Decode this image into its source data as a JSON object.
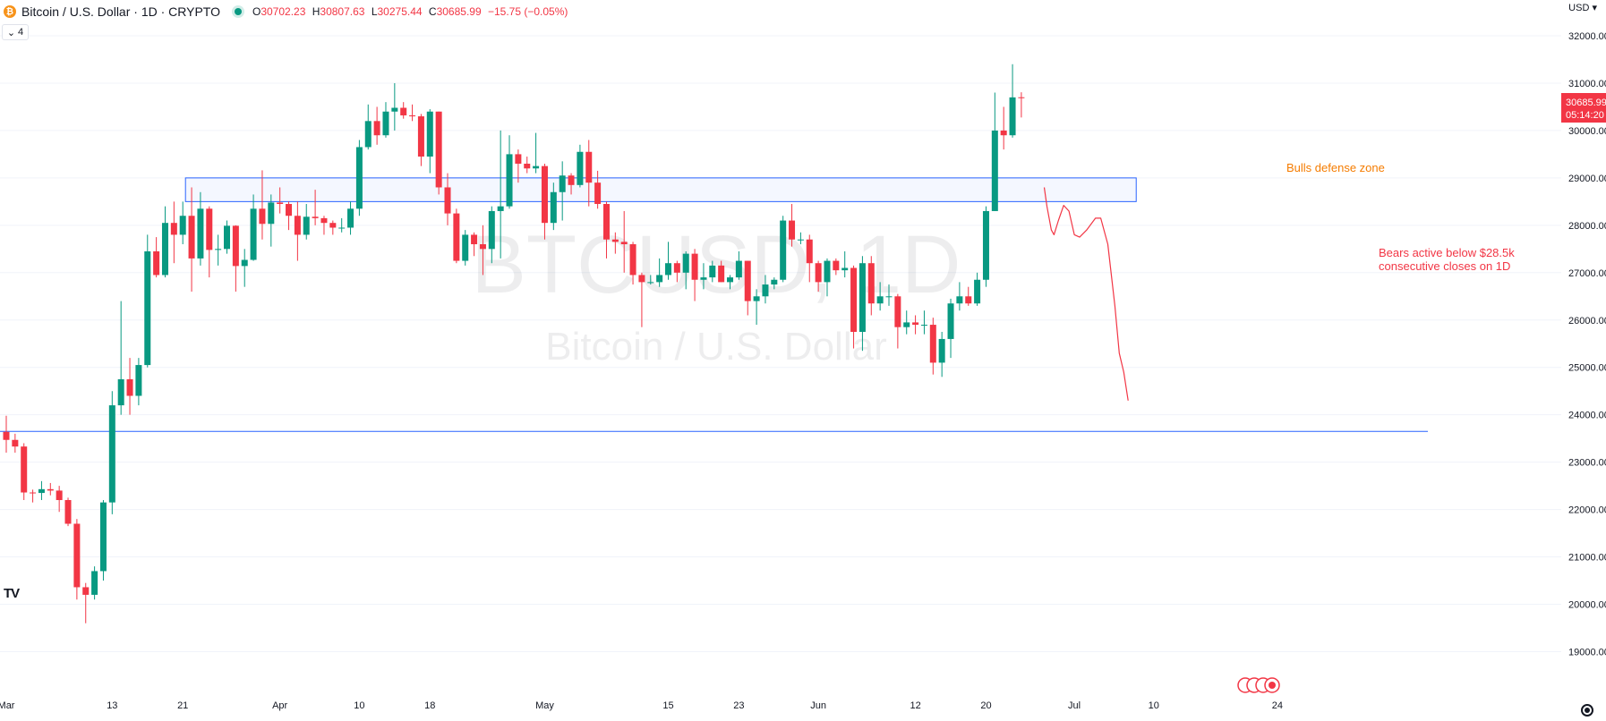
{
  "header": {
    "title": "Bitcoin / U.S. Dollar · 1D · CRYPTO",
    "icon": "bitcoin-icon",
    "ohlc": {
      "o_key": "O",
      "o": "30702.23",
      "h_key": "H",
      "h": "30807.63",
      "l_key": "L",
      "l": "30275.44",
      "c_key": "C",
      "c": "30685.99",
      "change": "−15.75 (−0.05%)"
    },
    "indicators_count": "4"
  },
  "currency": "USD",
  "colors": {
    "up": "#089981",
    "down": "#f23645",
    "zone": "#2962ff",
    "annotation": "#f57c00",
    "bear_note": "#f23645"
  },
  "watermark": {
    "symbol": "BTCUSD, 1D",
    "name": "Bitcoin / U.S. Dollar"
  },
  "price_label": {
    "price": "30685.99",
    "countdown": "05:14:20"
  },
  "chart_data": {
    "type": "candlestick",
    "title": "Bitcoin / U.S. Dollar · 1D · CRYPTO",
    "xlabel": "",
    "ylabel": "",
    "ylim": [
      18660,
      32660
    ],
    "y_ticks": [
      19000,
      20000,
      21000,
      22000,
      23000,
      24000,
      25000,
      26000,
      27000,
      28000,
      29000,
      30000,
      31000,
      32000
    ],
    "x_ticks": [
      {
        "label": "Mar",
        "index": 0
      },
      {
        "label": "13",
        "index": 12
      },
      {
        "label": "21",
        "index": 20
      },
      {
        "label": "Apr",
        "index": 31
      },
      {
        "label": "10",
        "index": 40
      },
      {
        "label": "18",
        "index": 48
      },
      {
        "label": "May",
        "index": 61
      },
      {
        "label": "15",
        "index": 75
      },
      {
        "label": "23",
        "index": 83
      },
      {
        "label": "Jun",
        "index": 92
      },
      {
        "label": "12",
        "index": 103
      },
      {
        "label": "20",
        "index": 111
      },
      {
        "label": "Jul",
        "index": 121
      },
      {
        "label": "10",
        "index": 130
      },
      {
        "label": "24",
        "index": 144
      }
    ],
    "first_date": "2023-03-01",
    "candles": [
      {
        "d": "03-01",
        "o": 23640,
        "h": 23980,
        "l": 23200,
        "c": 23470
      },
      {
        "d": "03-02",
        "o": 23470,
        "h": 23600,
        "l": 23200,
        "c": 23330
      },
      {
        "d": "03-03",
        "o": 23330,
        "h": 23400,
        "l": 22200,
        "c": 22360
      },
      {
        "d": "03-04",
        "o": 22360,
        "h": 22420,
        "l": 22150,
        "c": 22350
      },
      {
        "d": "03-05",
        "o": 22350,
        "h": 22600,
        "l": 22200,
        "c": 22430
      },
      {
        "d": "03-06",
        "o": 22430,
        "h": 22560,
        "l": 22300,
        "c": 22400
      },
      {
        "d": "03-07",
        "o": 22400,
        "h": 22500,
        "l": 21950,
        "c": 22200
      },
      {
        "d": "03-08",
        "o": 22200,
        "h": 22250,
        "l": 21650,
        "c": 21700
      },
      {
        "d": "03-09",
        "o": 21700,
        "h": 21800,
        "l": 20100,
        "c": 20360
      },
      {
        "d": "03-10",
        "o": 20360,
        "h": 20450,
        "l": 19600,
        "c": 20200
      },
      {
        "d": "03-11",
        "o": 20200,
        "h": 20800,
        "l": 20100,
        "c": 20700
      },
      {
        "d": "03-12",
        "o": 20700,
        "h": 22200,
        "l": 20500,
        "c": 22150
      },
      {
        "d": "03-13",
        "o": 22150,
        "h": 24500,
        "l": 21900,
        "c": 24200
      },
      {
        "d": "03-14",
        "o": 24200,
        "h": 26400,
        "l": 24000,
        "c": 24750
      },
      {
        "d": "03-15",
        "o": 24750,
        "h": 25200,
        "l": 24000,
        "c": 24400
      },
      {
        "d": "03-16",
        "o": 24400,
        "h": 25200,
        "l": 24200,
        "c": 25050
      },
      {
        "d": "03-17",
        "o": 25050,
        "h": 27800,
        "l": 25000,
        "c": 27450
      },
      {
        "d": "03-18",
        "o": 27450,
        "h": 27750,
        "l": 26900,
        "c": 26950
      },
      {
        "d": "03-19",
        "o": 26950,
        "h": 28400,
        "l": 26900,
        "c": 28050
      },
      {
        "d": "03-20",
        "o": 28050,
        "h": 28500,
        "l": 27200,
        "c": 27800
      },
      {
        "d": "03-21",
        "o": 27800,
        "h": 28500,
        "l": 27600,
        "c": 28200
      },
      {
        "d": "03-22",
        "o": 28200,
        "h": 28800,
        "l": 26600,
        "c": 27300
      },
      {
        "d": "03-23",
        "o": 27300,
        "h": 28700,
        "l": 27150,
        "c": 28350
      },
      {
        "d": "03-24",
        "o": 28350,
        "h": 28400,
        "l": 26900,
        "c": 27480
      },
      {
        "d": "03-25",
        "o": 27480,
        "h": 27800,
        "l": 27150,
        "c": 27500
      },
      {
        "d": "03-26",
        "o": 27500,
        "h": 28100,
        "l": 27400,
        "c": 27990
      },
      {
        "d": "03-27",
        "o": 27990,
        "h": 28000,
        "l": 26600,
        "c": 27140
      },
      {
        "d": "03-28",
        "o": 27140,
        "h": 27500,
        "l": 26700,
        "c": 27270
      },
      {
        "d": "03-29",
        "o": 27270,
        "h": 28650,
        "l": 27250,
        "c": 28350
      },
      {
        "d": "03-30",
        "o": 28350,
        "h": 29160,
        "l": 27700,
        "c": 28030
      },
      {
        "d": "03-31",
        "o": 28030,
        "h": 28650,
        "l": 27550,
        "c": 28480
      },
      {
        "d": "04-01",
        "o": 28480,
        "h": 28800,
        "l": 28250,
        "c": 28450
      },
      {
        "d": "04-02",
        "o": 28450,
        "h": 28500,
        "l": 27900,
        "c": 28200
      },
      {
        "d": "04-03",
        "o": 28200,
        "h": 28500,
        "l": 27250,
        "c": 27800
      },
      {
        "d": "04-04",
        "o": 27800,
        "h": 28450,
        "l": 27700,
        "c": 28180
      },
      {
        "d": "04-05",
        "o": 28180,
        "h": 28750,
        "l": 28000,
        "c": 28150
      },
      {
        "d": "04-06",
        "o": 28150,
        "h": 28200,
        "l": 27800,
        "c": 28050
      },
      {
        "d": "04-07",
        "o": 28050,
        "h": 28100,
        "l": 27800,
        "c": 27950
      },
      {
        "d": "04-08",
        "o": 27950,
        "h": 28150,
        "l": 27850,
        "c": 27950
      },
      {
        "d": "04-09",
        "o": 27950,
        "h": 28500,
        "l": 27800,
        "c": 28350
      },
      {
        "d": "04-10",
        "o": 28350,
        "h": 29800,
        "l": 28200,
        "c": 29650
      },
      {
        "d": "04-11",
        "o": 29650,
        "h": 30550,
        "l": 29600,
        "c": 30200
      },
      {
        "d": "04-12",
        "o": 30200,
        "h": 30500,
        "l": 29700,
        "c": 29900
      },
      {
        "d": "04-13",
        "o": 29900,
        "h": 30600,
        "l": 29850,
        "c": 30400
      },
      {
        "d": "04-14",
        "o": 30400,
        "h": 31000,
        "l": 30000,
        "c": 30480
      },
      {
        "d": "04-15",
        "o": 30480,
        "h": 30600,
        "l": 30250,
        "c": 30320
      },
      {
        "d": "04-16",
        "o": 30320,
        "h": 30550,
        "l": 30200,
        "c": 30300
      },
      {
        "d": "04-17",
        "o": 30300,
        "h": 30350,
        "l": 29250,
        "c": 29450
      },
      {
        "d": "04-18",
        "o": 29450,
        "h": 30450,
        "l": 29100,
        "c": 30400
      },
      {
        "d": "04-19",
        "o": 30400,
        "h": 30400,
        "l": 28650,
        "c": 28800
      },
      {
        "d": "04-20",
        "o": 28800,
        "h": 29100,
        "l": 28000,
        "c": 28250
      },
      {
        "d": "04-21",
        "o": 28250,
        "h": 28350,
        "l": 27200,
        "c": 27250
      },
      {
        "d": "04-22",
        "o": 27250,
        "h": 27900,
        "l": 27150,
        "c": 27800
      },
      {
        "d": "04-23",
        "o": 27800,
        "h": 27850,
        "l": 27350,
        "c": 27600
      },
      {
        "d": "04-24",
        "o": 27600,
        "h": 28000,
        "l": 26950,
        "c": 27500
      },
      {
        "d": "04-25",
        "o": 27500,
        "h": 28400,
        "l": 27200,
        "c": 28300
      },
      {
        "d": "04-26",
        "o": 28300,
        "h": 30000,
        "l": 27300,
        "c": 28400
      },
      {
        "d": "04-27",
        "o": 28400,
        "h": 29900,
        "l": 28350,
        "c": 29500
      },
      {
        "d": "04-28",
        "o": 29500,
        "h": 29600,
        "l": 28900,
        "c": 29300
      },
      {
        "d": "04-29",
        "o": 29300,
        "h": 29450,
        "l": 29100,
        "c": 29200
      },
      {
        "d": "04-30",
        "o": 29200,
        "h": 29950,
        "l": 29100,
        "c": 29250
      },
      {
        "d": "05-01",
        "o": 29250,
        "h": 29300,
        "l": 27700,
        "c": 28050
      },
      {
        "d": "05-02",
        "o": 28050,
        "h": 28900,
        "l": 27900,
        "c": 28700
      },
      {
        "d": "05-03",
        "o": 28700,
        "h": 29350,
        "l": 28100,
        "c": 29050
      },
      {
        "d": "05-04",
        "o": 29050,
        "h": 29100,
        "l": 28650,
        "c": 28850
      },
      {
        "d": "05-05",
        "o": 28850,
        "h": 29700,
        "l": 28800,
        "c": 29550
      },
      {
        "d": "05-06",
        "o": 29550,
        "h": 29800,
        "l": 28400,
        "c": 28900
      },
      {
        "d": "05-07",
        "o": 28900,
        "h": 29150,
        "l": 28350,
        "c": 28450
      },
      {
        "d": "05-08",
        "o": 28450,
        "h": 28500,
        "l": 27300,
        "c": 27700
      },
      {
        "d": "05-09",
        "o": 27700,
        "h": 27850,
        "l": 27400,
        "c": 27650
      },
      {
        "d": "05-10",
        "o": 27650,
        "h": 28300,
        "l": 27000,
        "c": 27600
      },
      {
        "d": "05-11",
        "o": 27600,
        "h": 27650,
        "l": 26750,
        "c": 26950
      },
      {
        "d": "05-12",
        "o": 26950,
        "h": 27000,
        "l": 25850,
        "c": 26800
      },
      {
        "d": "05-13",
        "o": 26800,
        "h": 26950,
        "l": 26750,
        "c": 26800
      },
      {
        "d": "05-14",
        "o": 26800,
        "h": 27300,
        "l": 26700,
        "c": 26950
      },
      {
        "d": "05-15",
        "o": 26950,
        "h": 27650,
        "l": 26850,
        "c": 27200
      },
      {
        "d": "05-16",
        "o": 27200,
        "h": 27250,
        "l": 26800,
        "c": 27000
      },
      {
        "d": "05-17",
        "o": 27000,
        "h": 27450,
        "l": 26650,
        "c": 27400
      },
      {
        "d": "05-18",
        "o": 27400,
        "h": 27500,
        "l": 26400,
        "c": 26850
      },
      {
        "d": "05-19",
        "o": 26850,
        "h": 27200,
        "l": 26650,
        "c": 26900
      },
      {
        "d": "05-20",
        "o": 26900,
        "h": 27250,
        "l": 26800,
        "c": 27150
      },
      {
        "d": "05-21",
        "o": 27150,
        "h": 27250,
        "l": 26800,
        "c": 26800
      },
      {
        "d": "05-22",
        "o": 26800,
        "h": 26950,
        "l": 26650,
        "c": 26900
      },
      {
        "d": "05-23",
        "o": 26900,
        "h": 27450,
        "l": 26850,
        "c": 27250
      },
      {
        "d": "05-24",
        "o": 27250,
        "h": 27250,
        "l": 26100,
        "c": 26400
      },
      {
        "d": "05-25",
        "o": 26400,
        "h": 26650,
        "l": 25900,
        "c": 26500
      },
      {
        "d": "05-26",
        "o": 26500,
        "h": 26950,
        "l": 26350,
        "c": 26750
      },
      {
        "d": "05-27",
        "o": 26750,
        "h": 26900,
        "l": 26650,
        "c": 26850
      },
      {
        "d": "05-28",
        "o": 26850,
        "h": 28200,
        "l": 26800,
        "c": 28100
      },
      {
        "d": "05-29",
        "o": 28100,
        "h": 28450,
        "l": 27550,
        "c": 27700
      },
      {
        "d": "05-30",
        "o": 27700,
        "h": 27850,
        "l": 27600,
        "c": 27700
      },
      {
        "d": "05-31",
        "o": 27700,
        "h": 27800,
        "l": 26800,
        "c": 27200
      },
      {
        "d": "06-01",
        "o": 27200,
        "h": 27250,
        "l": 26600,
        "c": 26800
      },
      {
        "d": "06-02",
        "o": 26800,
        "h": 27300,
        "l": 26500,
        "c": 27250
      },
      {
        "d": "06-03",
        "o": 27250,
        "h": 27300,
        "l": 26950,
        "c": 27050
      },
      {
        "d": "06-04",
        "o": 27050,
        "h": 27450,
        "l": 26900,
        "c": 27100
      },
      {
        "d": "06-05",
        "o": 27100,
        "h": 27150,
        "l": 25400,
        "c": 25750
      },
      {
        "d": "06-06",
        "o": 25750,
        "h": 27350,
        "l": 25350,
        "c": 27200
      },
      {
        "d": "06-07",
        "o": 27200,
        "h": 27350,
        "l": 26100,
        "c": 26350
      },
      {
        "d": "06-08",
        "o": 26350,
        "h": 26800,
        "l": 26200,
        "c": 26500
      },
      {
        "d": "06-09",
        "o": 26500,
        "h": 26750,
        "l": 26300,
        "c": 26500
      },
      {
        "d": "06-10",
        "o": 26500,
        "h": 26550,
        "l": 25400,
        "c": 25850
      },
      {
        "d": "06-11",
        "o": 25850,
        "h": 26200,
        "l": 25700,
        "c": 25950
      },
      {
        "d": "06-12",
        "o": 25950,
        "h": 26100,
        "l": 25700,
        "c": 25900
      },
      {
        "d": "06-13",
        "o": 25900,
        "h": 26200,
        "l": 25700,
        "c": 25900
      },
      {
        "d": "06-14",
        "o": 25900,
        "h": 26050,
        "l": 24850,
        "c": 25100
      },
      {
        "d": "06-15",
        "o": 25100,
        "h": 25750,
        "l": 24800,
        "c": 25600
      },
      {
        "d": "06-16",
        "o": 25600,
        "h": 26450,
        "l": 25200,
        "c": 26350
      },
      {
        "d": "06-17",
        "o": 26350,
        "h": 26800,
        "l": 26200,
        "c": 26500
      },
      {
        "d": "06-18",
        "o": 26500,
        "h": 26700,
        "l": 26300,
        "c": 26350
      },
      {
        "d": "06-19",
        "o": 26350,
        "h": 27000,
        "l": 26300,
        "c": 26850
      },
      {
        "d": "06-20",
        "o": 26850,
        "h": 28400,
        "l": 26700,
        "c": 28300
      },
      {
        "d": "06-21",
        "o": 28300,
        "h": 30800,
        "l": 28300,
        "c": 30000
      },
      {
        "d": "06-22",
        "o": 30000,
        "h": 30500,
        "l": 29600,
        "c": 29900
      },
      {
        "d": "06-23",
        "o": 29900,
        "h": 31400,
        "l": 29850,
        "c": 30700
      },
      {
        "d": "06-24",
        "o": 30702.23,
        "h": 30807.63,
        "l": 30275.44,
        "c": 30685.99
      }
    ],
    "resistance_zone": {
      "low": 28500,
      "high": 29000,
      "from_index": 20,
      "to_index": 127,
      "label": "Bulls defense zone"
    },
    "support_line": {
      "price": 23650
    },
    "bear_note": {
      "line1": "Bears active below $28.5k",
      "line2": "consecutive closes on 1D"
    },
    "projection_path": [
      {
        "i": 117.6,
        "p": 28800
      },
      {
        "i": 117.9,
        "p": 28400
      },
      {
        "i": 118.4,
        "p": 27900
      },
      {
        "i": 118.7,
        "p": 27800
      },
      {
        "i": 119.2,
        "p": 28100
      },
      {
        "i": 119.8,
        "p": 28420
      },
      {
        "i": 120.4,
        "p": 28300
      },
      {
        "i": 121.0,
        "p": 27800
      },
      {
        "i": 121.6,
        "p": 27750
      },
      {
        "i": 122.4,
        "p": 27900
      },
      {
        "i": 123.4,
        "p": 28150
      },
      {
        "i": 124.0,
        "p": 28150
      },
      {
        "i": 124.8,
        "p": 27600
      },
      {
        "i": 125.6,
        "p": 26300
      },
      {
        "i": 126.1,
        "p": 25300
      },
      {
        "i": 126.6,
        "p": 24900
      },
      {
        "i": 127.1,
        "p": 24300
      }
    ]
  }
}
